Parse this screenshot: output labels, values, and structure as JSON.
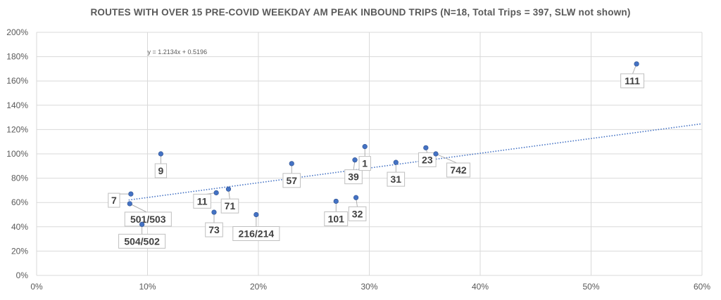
{
  "chart_data": {
    "type": "scatter",
    "title": "ROUTES WITH OVER 15 PRE-COVID WEEKDAY AM PEAK INBOUND TRIPS (N=18, Total Trips = 397, SLW not shown)",
    "xlabel": "",
    "ylabel": "",
    "xlim": [
      0,
      60
    ],
    "ylim": [
      0,
      200
    ],
    "x_ticks": [
      "0%",
      "10%",
      "20%",
      "30%",
      "40%",
      "50%",
      "60%"
    ],
    "y_ticks": [
      "0%",
      "20%",
      "40%",
      "60%",
      "80%",
      "100%",
      "120%",
      "140%",
      "160%",
      "180%",
      "200%"
    ],
    "grid": true,
    "point_color": "#4472C4",
    "trendline": {
      "type": "linear",
      "equation": "y = 1.2134x + 0.5196",
      "slope": 1.2134,
      "intercept": 0.5196,
      "x_range": [
        8.3,
        60
      ],
      "color": "#4472C4",
      "style": "dotted"
    },
    "points": [
      {
        "label": "111",
        "x": 54.1,
        "y": 174
      },
      {
        "label": "9",
        "x": 11.2,
        "y": 100
      },
      {
        "label": "7",
        "x": 8.5,
        "y": 67
      },
      {
        "label": "501/503",
        "x": 8.4,
        "y": 59
      },
      {
        "label": "504/502",
        "x": 9.5,
        "y": 42
      },
      {
        "label": "11",
        "x": 16.2,
        "y": 68
      },
      {
        "label": "71",
        "x": 17.3,
        "y": 71
      },
      {
        "label": "73",
        "x": 16.0,
        "y": 52
      },
      {
        "label": "216/214",
        "x": 19.8,
        "y": 50
      },
      {
        "label": "57",
        "x": 23.0,
        "y": 92
      },
      {
        "label": "39",
        "x": 28.7,
        "y": 95
      },
      {
        "label": "1",
        "x": 29.6,
        "y": 106
      },
      {
        "label": "101",
        "x": 27.0,
        "y": 61
      },
      {
        "label": "32",
        "x": 28.8,
        "y": 64
      },
      {
        "label": "31",
        "x": 32.4,
        "y": 93
      },
      {
        "label": "23",
        "x": 35.1,
        "y": 105
      },
      {
        "label": "742",
        "x": 36.0,
        "y": 100
      }
    ]
  }
}
